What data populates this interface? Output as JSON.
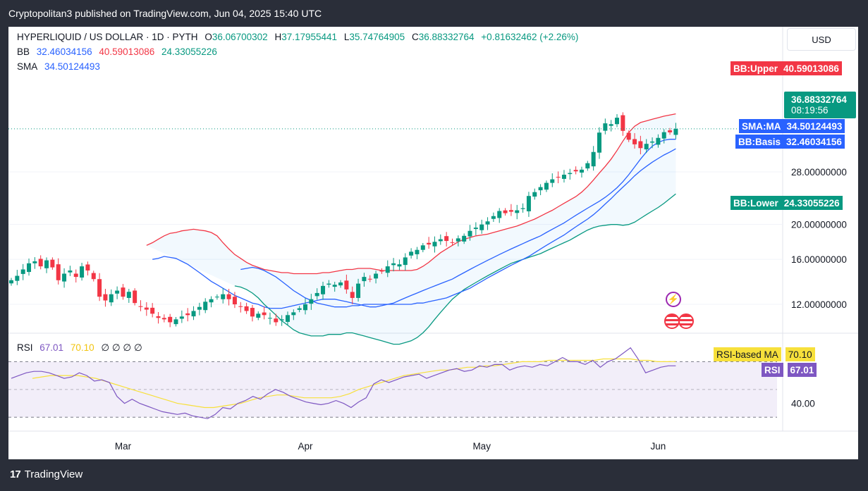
{
  "header": {
    "published": "Cryptopolitan3 published on TradingView.com, Jun 04, 2025 15:40 UTC"
  },
  "legend": {
    "symbol": "HYPERLIQUID / US DOLLAR · 1D · PYTH",
    "o_label": "O",
    "o": "36.06700302",
    "h_label": "H",
    "h": "37.17955441",
    "l_label": "L",
    "l": "35.74764905",
    "c_label": "C",
    "c": "36.88332764",
    "change": "+0.81632462 (+2.26%)",
    "bb_label": "BB",
    "bb_basis": "32.46034156",
    "bb_upper": "40.59013086",
    "bb_lower": "24.33055226",
    "sma_label": "SMA",
    "sma": "34.50124493",
    "rsi_label": "RSI",
    "rsi": "67.01",
    "rsi_ma": "70.10",
    "rsi_extra": "∅ ∅ ∅ ∅"
  },
  "currency_button": "USD",
  "tags": {
    "bb_upper_label": "BB:Upper",
    "bb_upper_value": "40.59013086",
    "price_value": "36.88332764",
    "countdown": "08:19:56",
    "sma_label": "SMA:MA",
    "sma_value": "34.50124493",
    "bb_basis_label": "BB:Basis",
    "bb_basis_value": "32.46034156",
    "bb_lower_label": "BB:Lower",
    "bb_lower_value": "24.33055226",
    "rsi_ma_label": "RSI-based MA",
    "rsi_ma_value": "70.10",
    "rsi_label": "RSI",
    "rsi_value": "67.01"
  },
  "price_axis": [
    "28.00000000",
    "20.00000000",
    "16.00000000",
    "12.00000000"
  ],
  "rsi_axis": [
    "40.00"
  ],
  "time_axis": [
    "Mar",
    "Apr",
    "May",
    "Jun"
  ],
  "footer": {
    "brand": "TradingView",
    "brand_mark": "17"
  },
  "colors": {
    "up": "#089981",
    "down": "#f23645",
    "bb_upper": "#f23645",
    "bb_lower": "#089981",
    "bb_fill": "#2196f3",
    "sma": "#2962ff",
    "basis": "#2962ff",
    "rsi": "#7e57c2",
    "rsi_ma": "#f7e03b",
    "tag_blue": "#2962ff",
    "tag_purple": "#7e57c2",
    "tag_yellow": "#f7e03b"
  },
  "chart_data": [
    {
      "type": "candlestick",
      "title": "HYPERLIQUID / US DOLLAR · 1D · PYTH",
      "y_scale": "log",
      "y_ticks": [
        28,
        20,
        16,
        12
      ],
      "x_ticks": [
        "Mar",
        "Apr",
        "May",
        "Jun"
      ],
      "x_start": "2025-02-10",
      "x_end": "2025-06-04",
      "closes": [
        14.0,
        14.4,
        15.0,
        15.6,
        15.8,
        15.3,
        15.9,
        15.2,
        14.0,
        14.6,
        14.9,
        14.3,
        15.3,
        14.9,
        14.1,
        12.6,
        12.3,
        12.8,
        13.1,
        12.6,
        13.0,
        12.1,
        11.8,
        11.6,
        11.3,
        11.0,
        10.9,
        10.7,
        10.9,
        11.1,
        11.2,
        11.5,
        11.8,
        12.2,
        12.4,
        12.6,
        12.8,
        12.4,
        12.0,
        11.8,
        11.5,
        11.1,
        11.3,
        11.2,
        11.0,
        10.7,
        10.9,
        11.2,
        11.4,
        11.7,
        12.0,
        12.4,
        12.9,
        13.5,
        13.7,
        13.6,
        13.8,
        13.2,
        12.5,
        13.7,
        14.3,
        14.1,
        14.6,
        14.8,
        15.3,
        15.6,
        15.5,
        16.2,
        16.8,
        17.0,
        17.5,
        17.6,
        17.9,
        18.2,
        18.0,
        17.8,
        18.3,
        18.6,
        19.2,
        19.6,
        20.0,
        20.4,
        21.1,
        21.8,
        21.5,
        21.7,
        21.9,
        22.2,
        24.0,
        24.6,
        25.4,
        26.1,
        26.7,
        27.1,
        27.5,
        27.8,
        28.1,
        28.4,
        29.6,
        31.8,
        36.0,
        38.2,
        38.0,
        39.6,
        36.4,
        34.4,
        33.4,
        32.6,
        33.5,
        34.0,
        34.8,
        36.1,
        36.06,
        36.88
      ],
      "bb_upper": [
        17.5,
        17.8,
        18.2,
        18.6,
        18.9,
        19.0,
        19.2,
        19.3,
        19.4,
        19.3,
        19.2,
        19.0,
        18.6,
        17.8,
        17.1,
        16.5,
        16.1,
        15.7,
        15.4,
        15.2,
        15.0,
        14.9,
        14.8,
        14.7,
        14.7,
        14.6,
        14.6,
        14.6,
        14.6,
        14.6,
        14.7,
        14.7,
        14.8,
        14.9,
        15.0,
        15.0,
        15.1,
        15.1,
        15.1,
        15.0,
        14.9,
        14.9,
        14.9,
        14.9,
        14.9,
        14.9,
        15.0,
        15.3,
        15.7,
        16.2,
        16.7,
        17.1,
        17.5,
        17.9,
        18.2,
        18.4,
        18.6,
        18.7,
        18.8,
        19.0,
        19.2,
        19.4,
        19.6,
        19.8,
        20.1,
        20.4,
        20.7,
        21.1,
        21.5,
        21.9,
        22.4,
        22.9,
        23.4,
        23.9,
        24.6,
        25.5,
        26.6,
        27.8,
        29.0,
        30.4,
        32.1,
        34.1,
        36.0,
        37.5,
        38.4,
        38.8,
        39.2,
        39.6,
        40.0,
        40.3,
        40.59
      ],
      "sma": [
        16.0,
        16.1,
        16.3,
        16.2,
        16.1,
        15.8,
        15.5,
        15.1,
        14.7,
        14.3,
        13.9,
        13.6,
        13.3,
        13.0,
        12.7,
        12.5,
        12.3,
        12.1,
        12.0,
        11.8,
        11.7,
        11.7,
        11.7,
        11.8,
        11.9,
        12.0,
        12.1,
        12.2,
        12.3,
        12.4,
        12.4,
        12.4,
        12.3,
        12.2,
        12.1,
        12.0,
        11.9,
        11.8,
        11.8,
        11.9,
        12.0,
        12.1,
        12.3,
        12.5,
        12.7,
        12.9,
        13.1,
        13.3,
        13.5,
        13.7,
        13.9,
        14.1,
        14.4,
        14.7,
        15.0,
        15.3,
        15.6,
        15.9,
        16.2,
        16.5,
        16.8,
        17.1,
        17.4,
        17.7,
        18.0,
        18.3,
        18.6,
        19.0,
        19.4,
        19.8,
        20.2,
        20.7,
        21.2,
        21.7,
        22.2,
        22.7,
        23.2,
        23.8,
        24.5,
        25.3,
        26.3,
        27.5,
        28.9,
        30.4,
        31.8,
        33.0,
        33.8,
        34.3,
        34.5,
        34.5
      ],
      "bb_basis": [
        15.0,
        15.1,
        15.2,
        15.1,
        14.9,
        14.6,
        14.3,
        13.9,
        13.5,
        13.1,
        12.8,
        12.5,
        12.3,
        12.1,
        12.0,
        11.9,
        11.8,
        11.8,
        11.8,
        11.9,
        11.9,
        12.0,
        12.0,
        12.0,
        12.0,
        12.0,
        12.0,
        12.0,
        12.0,
        12.0,
        12.1,
        12.1,
        12.2,
        12.3,
        12.4,
        12.5,
        12.7,
        12.9,
        13.1,
        13.3,
        13.6,
        13.9,
        14.2,
        14.5,
        14.8,
        15.1,
        15.4,
        15.7,
        16.0,
        16.3,
        16.7,
        17.1,
        17.5,
        17.9,
        18.3,
        18.7,
        19.2,
        19.7,
        20.2,
        20.7,
        21.3,
        22.0,
        22.8,
        23.6,
        24.5,
        25.4,
        26.3,
        27.3,
        28.2,
        29.0,
        29.8,
        30.5,
        31.2,
        31.8,
        32.46
      ],
      "bb_lower": [
        13.5,
        13.4,
        13.2,
        12.9,
        12.5,
        12.0,
        11.6,
        11.2,
        10.8,
        10.5,
        10.2,
        10.0,
        9.9,
        9.8,
        9.8,
        9.8,
        9.9,
        9.9,
        9.9,
        10.0,
        10.0,
        9.9,
        9.8,
        9.7,
        9.6,
        9.5,
        9.4,
        9.3,
        9.3,
        9.4,
        9.5,
        9.7,
        10.0,
        10.4,
        10.9,
        11.4,
        11.9,
        12.4,
        12.8,
        13.2,
        13.5,
        13.8,
        14.1,
        14.4,
        14.7,
        15.0,
        15.3,
        15.6,
        15.8,
        16.0,
        16.2,
        16.4,
        16.6,
        16.9,
        17.2,
        17.5,
        17.8,
        18.1,
        18.5,
        18.9,
        19.3,
        19.6,
        19.8,
        19.9,
        20.0,
        20.0,
        19.9,
        20.0,
        20.3,
        20.8,
        21.3,
        21.8,
        22.3,
        22.9,
        23.6,
        24.33
      ]
    },
    {
      "type": "line",
      "title": "RSI",
      "series": [
        {
          "name": "RSI",
          "values": [
            58,
            60,
            62,
            63,
            63,
            62,
            60,
            58,
            59,
            62,
            60,
            56,
            57,
            55,
            45,
            40,
            43,
            40,
            38,
            36,
            34,
            33,
            32,
            33,
            31,
            30,
            29,
            32,
            37,
            36,
            40,
            42,
            45,
            43,
            47,
            50,
            48,
            45,
            43,
            41,
            40,
            39,
            40,
            42,
            40,
            37,
            41,
            44,
            54,
            57,
            55,
            57,
            59,
            60,
            61,
            58,
            60,
            62,
            64,
            65,
            63,
            64,
            67,
            66,
            68,
            68,
            64,
            66,
            67,
            66,
            68,
            67,
            70,
            73,
            70,
            70,
            68,
            71,
            66,
            70,
            72,
            76,
            80,
            72,
            62,
            64,
            66,
            67,
            67.01
          ]
        },
        {
          "name": "RSI-based MA",
          "values": [
            58,
            59,
            60,
            60,
            60,
            60,
            59,
            58,
            56,
            54,
            52,
            50,
            48,
            46,
            44,
            42,
            40,
            39,
            38,
            37,
            37,
            38,
            39,
            40,
            42,
            44,
            45,
            46,
            46,
            45,
            44,
            44,
            44,
            44,
            45,
            47,
            50,
            52,
            54,
            56,
            58,
            60,
            61,
            62,
            63,
            64,
            64,
            65,
            66,
            66,
            67,
            67,
            68,
            69,
            70,
            70,
            70,
            71,
            71,
            71,
            71,
            71,
            71,
            72,
            72,
            72,
            72,
            71,
            71,
            70,
            70,
            70.1
          ]
        }
      ],
      "ylim": [
        20,
        90
      ],
      "y_ticks": [
        40
      ]
    }
  ]
}
